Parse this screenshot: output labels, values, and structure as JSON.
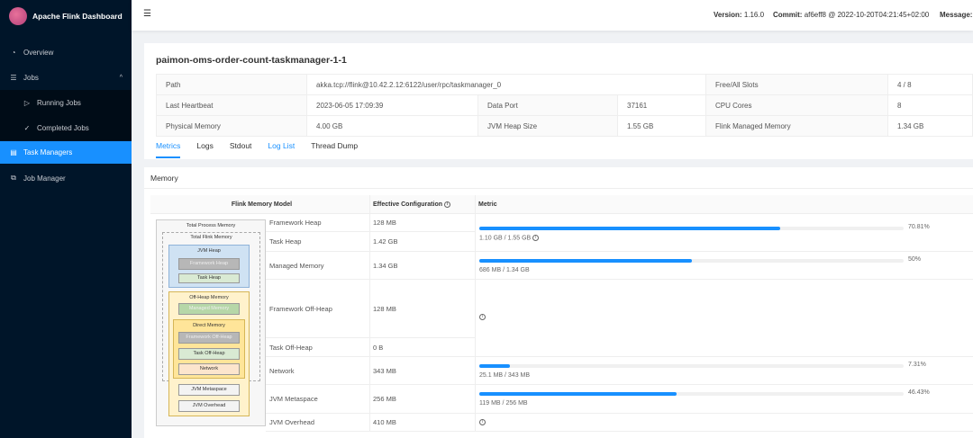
{
  "brand": {
    "title": "Apache Flink Dashboard"
  },
  "sidebar": {
    "items": [
      {
        "label": "Overview",
        "icon": "dashboard-icon"
      },
      {
        "label": "Jobs",
        "icon": "list-icon"
      },
      {
        "label": "Running Jobs",
        "icon": "play-circle-icon"
      },
      {
        "label": "Completed Jobs",
        "icon": "check-circle-icon"
      },
      {
        "label": "Task Managers",
        "icon": "schedule-icon",
        "active": true
      },
      {
        "label": "Job Manager",
        "icon": "cluster-icon"
      }
    ]
  },
  "header": {
    "version_label": "Version:",
    "version": "1.16.0",
    "commit_label": "Commit:",
    "commit": "af6eff8 @ 2022-10-20T04:21:45+02:00",
    "message_label": "Message:"
  },
  "taskmanager": {
    "title": "paimon-oms-order-count-taskmanager-1-1",
    "path_label": "Path",
    "path": "akka.tcp://flink@10.42.2.12:6122/user/rpc/taskmanager_0",
    "slots_label": "Free/All Slots",
    "slots": "4 / 8",
    "heartbeat_label": "Last Heartbeat",
    "heartbeat": "2023-06-05 17:09:39",
    "dataport_label": "Data Port",
    "dataport": "37161",
    "cpu_label": "CPU Cores",
    "cpu": "8",
    "physmem_label": "Physical Memory",
    "physmem": "4.00 GB",
    "heap_label": "JVM Heap Size",
    "heap": "1.55 GB",
    "managed_label": "Flink Managed Memory",
    "managed": "1.34 GB"
  },
  "tabs": [
    "Metrics",
    "Logs",
    "Stdout",
    "Log List",
    "Thread Dump"
  ],
  "memory": {
    "title": "Memory",
    "headers": {
      "model": "Flink Memory Model",
      "config": "Effective Configuration",
      "metric": "Metric"
    },
    "rows": [
      {
        "name": "Framework Heap",
        "config": "128 MB"
      },
      {
        "name": "Task Heap",
        "config": "1.42 GB"
      },
      {
        "name": "Managed Memory",
        "config": "1.34 GB"
      },
      {
        "name": "Framework Off-Heap",
        "config": "128 MB"
      },
      {
        "name": "Task Off-Heap",
        "config": "0 B"
      },
      {
        "name": "Network",
        "config": "343 MB"
      },
      {
        "name": "JVM Metaspace",
        "config": "256 MB"
      },
      {
        "name": "JVM Overhead",
        "config": "410 MB"
      }
    ],
    "metrics": [
      {
        "percent": 70.81,
        "percent_label": "70.81%",
        "detail": "1.10 GB / 1.55 GB"
      },
      {
        "percent": 50,
        "percent_label": "50%",
        "detail": "686 MB / 1.34 GB"
      },
      {
        "percent": 7.31,
        "percent_label": "7.31%",
        "detail": "25.1 MB / 343 MB"
      },
      {
        "percent": 46.43,
        "percent_label": "46.43%",
        "detail": "119 MB / 256 MB"
      }
    ],
    "diagram": {
      "total_process": "Total Process Memory",
      "total_flink": "Total Flink Memory",
      "jvm_heap": "JVM Heap",
      "framework_heap": "Framework Heap",
      "task_heap": "Task Heap",
      "off_heap": "Off-Heap Memory",
      "managed": "Managed Memory",
      "direct": "Direct Memory",
      "framework_off_heap": "Framework Off-Heap",
      "task_off_heap": "Task Off-Heap",
      "network": "Network",
      "metaspace": "JVM Metaspace",
      "overhead": "JVM Overhead"
    }
  },
  "colors": {
    "accent": "#1890ff",
    "sidebar": "#001529"
  }
}
